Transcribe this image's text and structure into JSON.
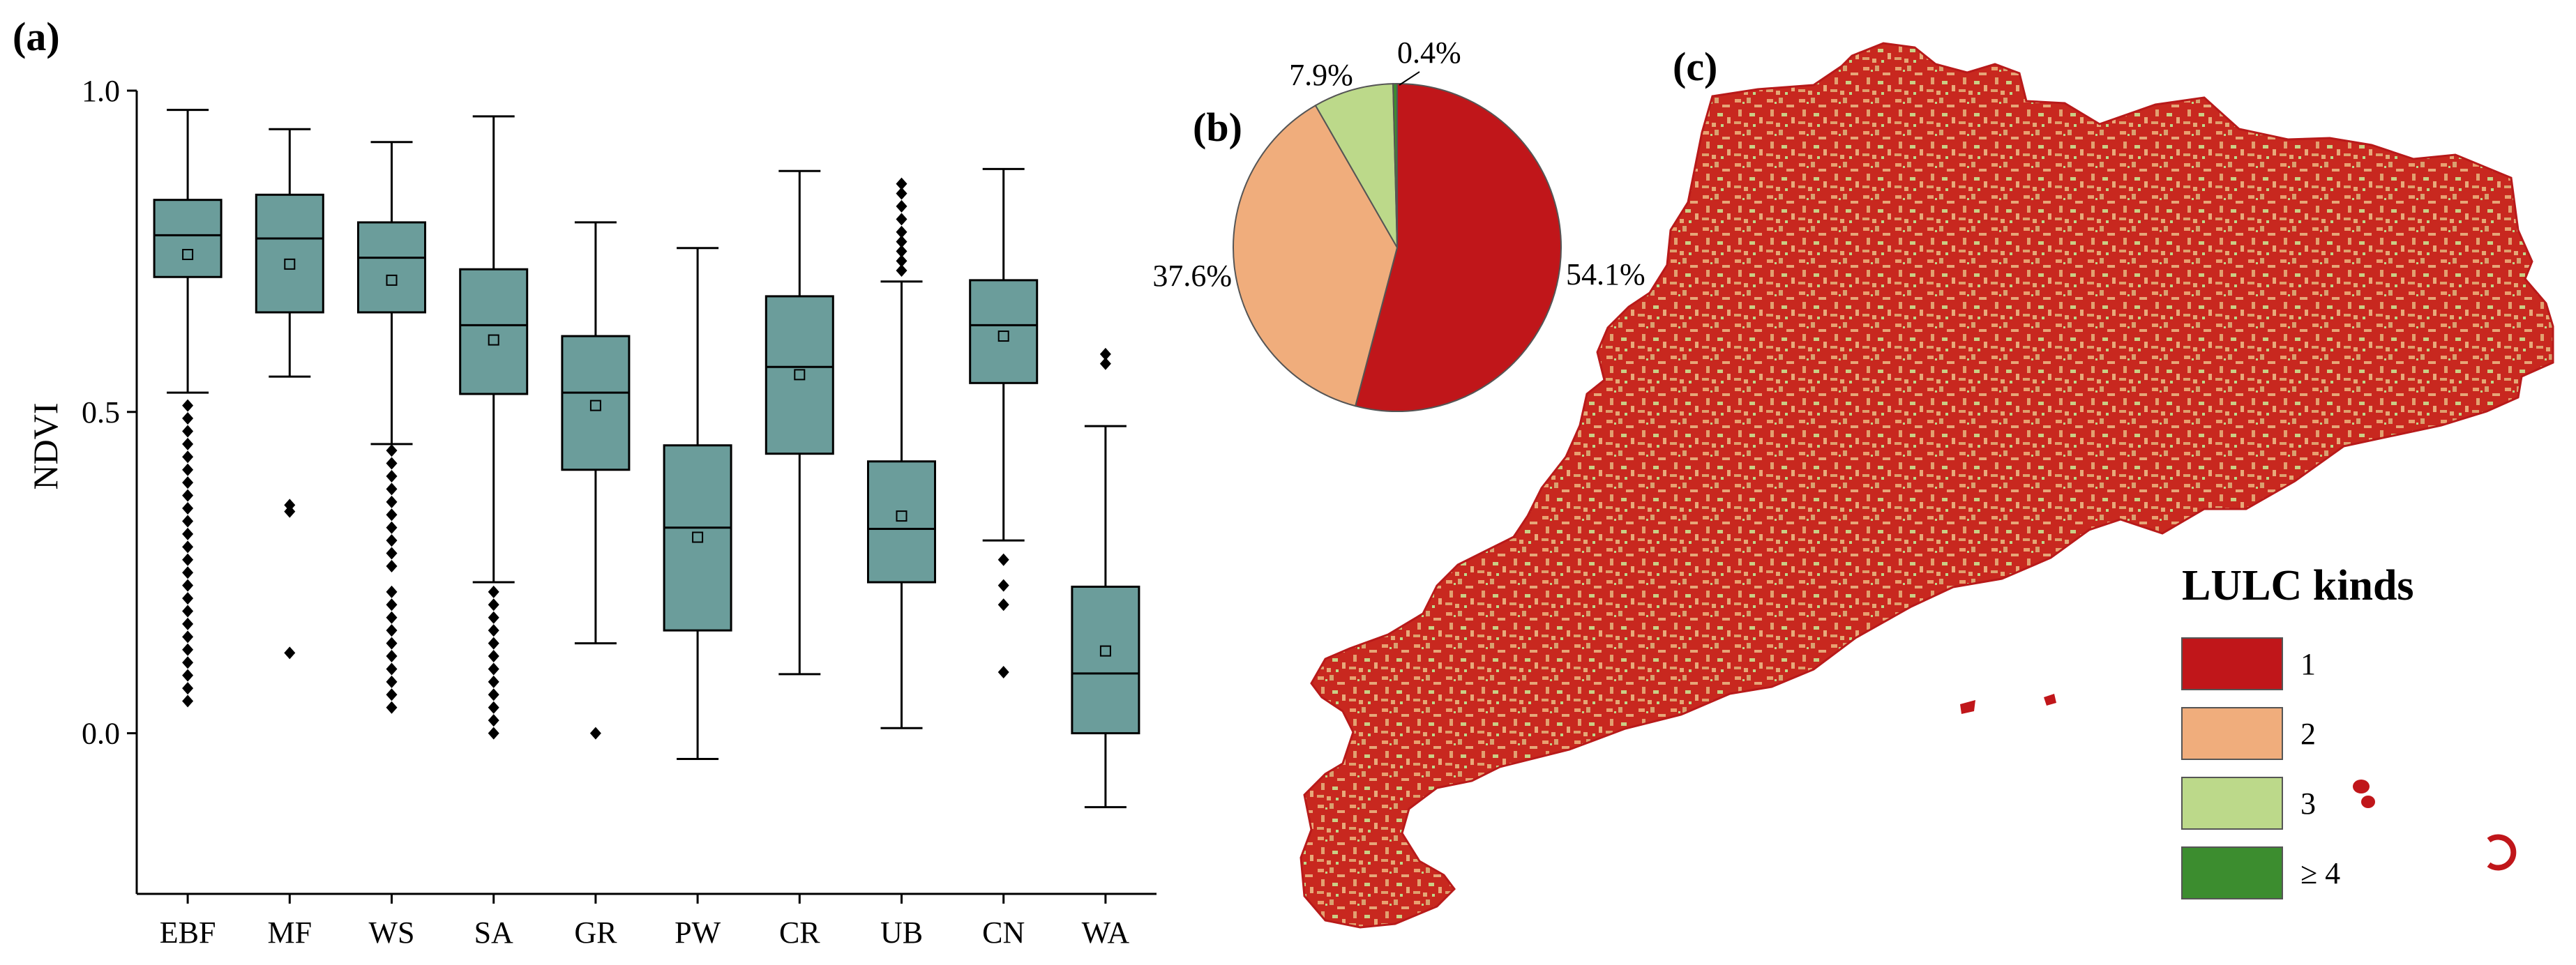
{
  "panels": {
    "a": "(a)",
    "b": "(b)",
    "c": "(c)"
  },
  "colors": {
    "box_fill": "#6b9d9b",
    "box_stroke": "#000000",
    "lulc_1": "#c0161a",
    "lulc_2": "#f0ad7c",
    "lulc_3": "#bcd98a",
    "lulc_4": "#3c8d2f"
  },
  "chart_data": [
    {
      "type": "box",
      "ylabel": "NDVI",
      "ylim": [
        -0.25,
        1.0
      ],
      "yticks": [
        0.0,
        0.5,
        1.0
      ],
      "ytick_labels": [
        "0.0",
        "0.5",
        "1.0"
      ],
      "categories": [
        "EBF",
        "MF",
        "WS",
        "SA",
        "GR",
        "PW",
        "CR",
        "UB",
        "CN",
        "WA"
      ],
      "boxes": [
        {
          "name": "EBF",
          "whisker_low": 0.53,
          "q1": 0.71,
          "median": 0.775,
          "q3": 0.83,
          "whisker_high": 0.97,
          "mean": 0.745,
          "outliers": [
            0.05,
            0.07,
            0.09,
            0.11,
            0.13,
            0.15,
            0.17,
            0.19,
            0.21,
            0.23,
            0.25,
            0.27,
            0.29,
            0.31,
            0.33,
            0.35,
            0.37,
            0.39,
            0.41,
            0.43,
            0.45,
            0.47,
            0.49,
            0.51
          ]
        },
        {
          "name": "MF",
          "whisker_low": 0.555,
          "q1": 0.655,
          "median": 0.77,
          "q3": 0.838,
          "whisker_high": 0.94,
          "mean": 0.73,
          "outliers": [
            0.125,
            0.345,
            0.355
          ]
        },
        {
          "name": "WS",
          "whisker_low": 0.45,
          "q1": 0.655,
          "median": 0.74,
          "q3": 0.795,
          "whisker_high": 0.92,
          "mean": 0.705,
          "outliers": [
            0.04,
            0.06,
            0.08,
            0.1,
            0.12,
            0.14,
            0.16,
            0.18,
            0.2,
            0.22,
            0.26,
            0.28,
            0.3,
            0.32,
            0.34,
            0.36,
            0.38,
            0.4,
            0.42,
            0.44
          ]
        },
        {
          "name": "SA",
          "whisker_low": 0.235,
          "q1": 0.528,
          "median": 0.635,
          "q3": 0.722,
          "whisker_high": 0.96,
          "mean": 0.612,
          "outliers": [
            0.0,
            0.02,
            0.04,
            0.06,
            0.08,
            0.1,
            0.12,
            0.14,
            0.16,
            0.18,
            0.2,
            0.22
          ]
        },
        {
          "name": "GR",
          "whisker_low": 0.14,
          "q1": 0.41,
          "median": 0.53,
          "q3": 0.618,
          "whisker_high": 0.795,
          "mean": 0.51,
          "outliers": [
            0.0
          ]
        },
        {
          "name": "PW",
          "whisker_low": -0.04,
          "q1": 0.16,
          "median": 0.32,
          "q3": 0.448,
          "whisker_high": 0.755,
          "mean": 0.305,
          "outliers": []
        },
        {
          "name": "CR",
          "whisker_low": 0.092,
          "q1": 0.435,
          "median": 0.57,
          "q3": 0.68,
          "whisker_high": 0.875,
          "mean": 0.558,
          "outliers": []
        },
        {
          "name": "UB",
          "whisker_low": 0.008,
          "q1": 0.235,
          "median": 0.318,
          "q3": 0.423,
          "whisker_high": 0.703,
          "mean": 0.338,
          "outliers": [
            0.72,
            0.735,
            0.75,
            0.765,
            0.78,
            0.8,
            0.82,
            0.84,
            0.855
          ]
        },
        {
          "name": "CN",
          "whisker_low": 0.3,
          "q1": 0.545,
          "median": 0.635,
          "q3": 0.705,
          "whisker_high": 0.878,
          "mean": 0.618,
          "outliers": [
            0.095,
            0.2,
            0.23,
            0.27
          ]
        },
        {
          "name": "WA",
          "whisker_low": -0.115,
          "q1": 0.0,
          "median": 0.093,
          "q3": 0.228,
          "whisker_high": 0.478,
          "mean": 0.128,
          "outliers": [
            0.575,
            0.59
          ]
        }
      ]
    },
    {
      "type": "pie",
      "labels": [
        "1",
        "2",
        "3",
        "≥ 4"
      ],
      "values": [
        54.1,
        37.6,
        7.9,
        0.4
      ],
      "value_labels": [
        "54.1%",
        "37.6%",
        "7.9%",
        "0.4%"
      ]
    }
  ],
  "map": {
    "legend_title": "LULC kinds",
    "legend_items": [
      {
        "label": "1",
        "color_key": "lulc_1"
      },
      {
        "label": "2",
        "color_key": "lulc_2"
      },
      {
        "label": "3",
        "color_key": "lulc_3"
      },
      {
        "label": "≥ 4",
        "color_key": "lulc_4"
      }
    ]
  }
}
